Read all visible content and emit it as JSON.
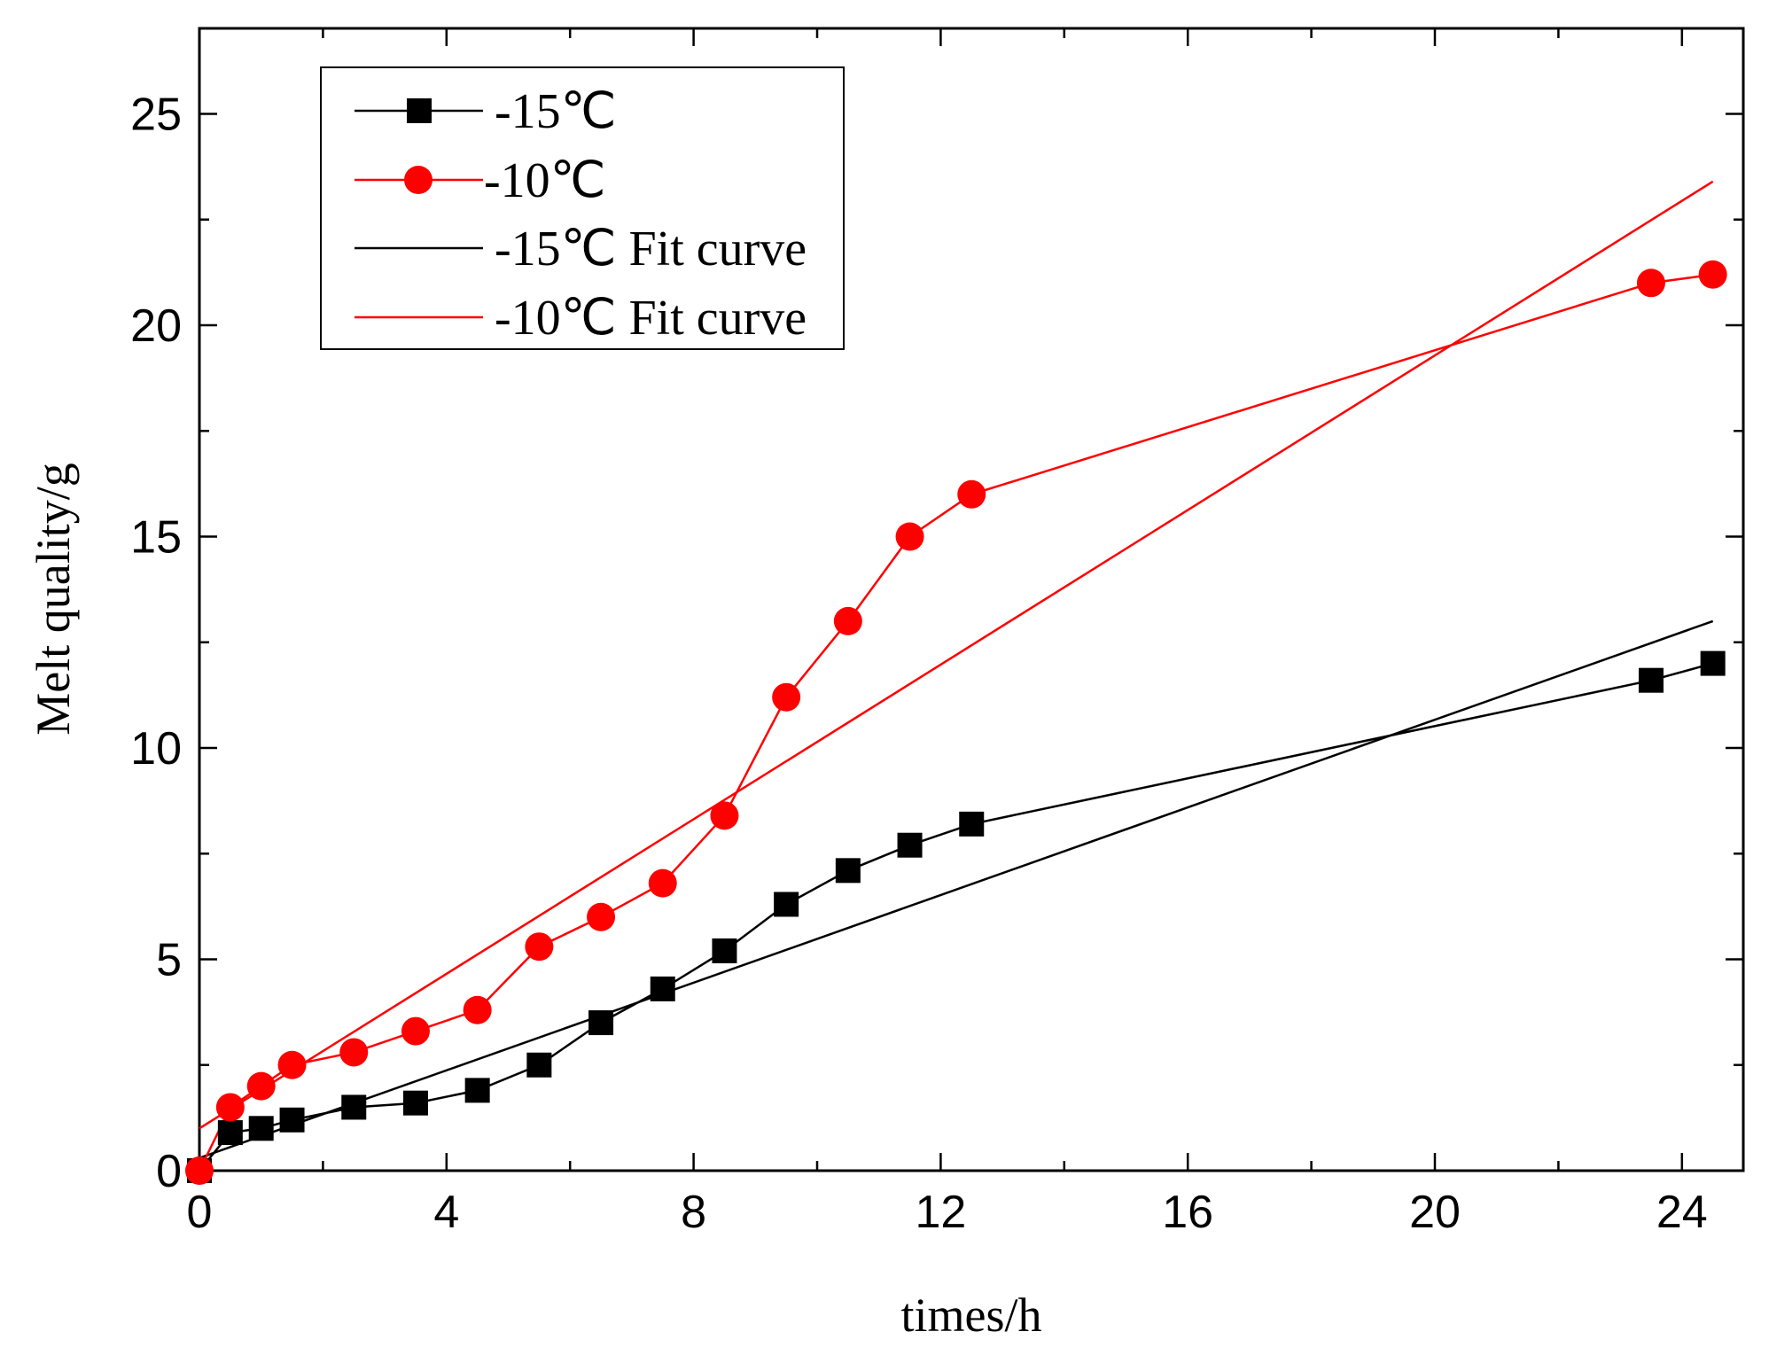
{
  "chart_data": {
    "type": "line",
    "title": "",
    "xlabel": "times/h",
    "ylabel": "Melt quality/g",
    "xlim": [
      0,
      25
    ],
    "ylim": [
      0,
      27
    ],
    "xticks": [
      0,
      4,
      8,
      12,
      16,
      20,
      24
    ],
    "xtick_labels": [
      "0",
      "4",
      "8",
      "12",
      "16",
      "20",
      "24"
    ],
    "yticks": [
      0,
      5,
      10,
      15,
      20,
      25
    ],
    "ytick_labels": [
      "0",
      "5",
      "10",
      "15",
      "20",
      "25"
    ],
    "grid": false,
    "legend_position": "top-left",
    "series": [
      {
        "name": "-15℃",
        "color": "#000000",
        "marker": "square",
        "x": [
          0,
          0.5,
          1,
          1.5,
          2.5,
          3.5,
          4.5,
          5.5,
          6.5,
          7.5,
          8.5,
          9.5,
          10.5,
          11.5,
          12.5,
          23.5,
          24.5
        ],
        "y": [
          0,
          0.9,
          1.0,
          1.2,
          1.5,
          1.6,
          1.9,
          2.5,
          3.5,
          4.3,
          5.2,
          6.3,
          7.1,
          7.7,
          8.2,
          11.6,
          12.0
        ]
      },
      {
        "name": "-10℃",
        "color": "#ff0000",
        "marker": "circle",
        "x": [
          0,
          0.5,
          1,
          1.5,
          2.5,
          3.5,
          4.5,
          5.5,
          6.5,
          7.5,
          8.5,
          9.5,
          10.5,
          11.5,
          12.5,
          23.5,
          24.5
        ],
        "y": [
          0,
          1.5,
          2.0,
          2.5,
          2.8,
          3.3,
          3.8,
          5.3,
          6.0,
          6.8,
          8.4,
          11.2,
          13.0,
          15.0,
          16.0,
          21.0,
          21.2
        ]
      },
      {
        "name": "-15℃ Fit curve",
        "color": "#000000",
        "marker": "none",
        "x": [
          0,
          24.5
        ],
        "y": [
          0.3,
          13.0
        ]
      },
      {
        "name": "-10℃ Fit curve",
        "color": "#ff0000",
        "marker": "none",
        "x": [
          0,
          24.5
        ],
        "y": [
          1.0,
          23.4
        ]
      }
    ]
  }
}
